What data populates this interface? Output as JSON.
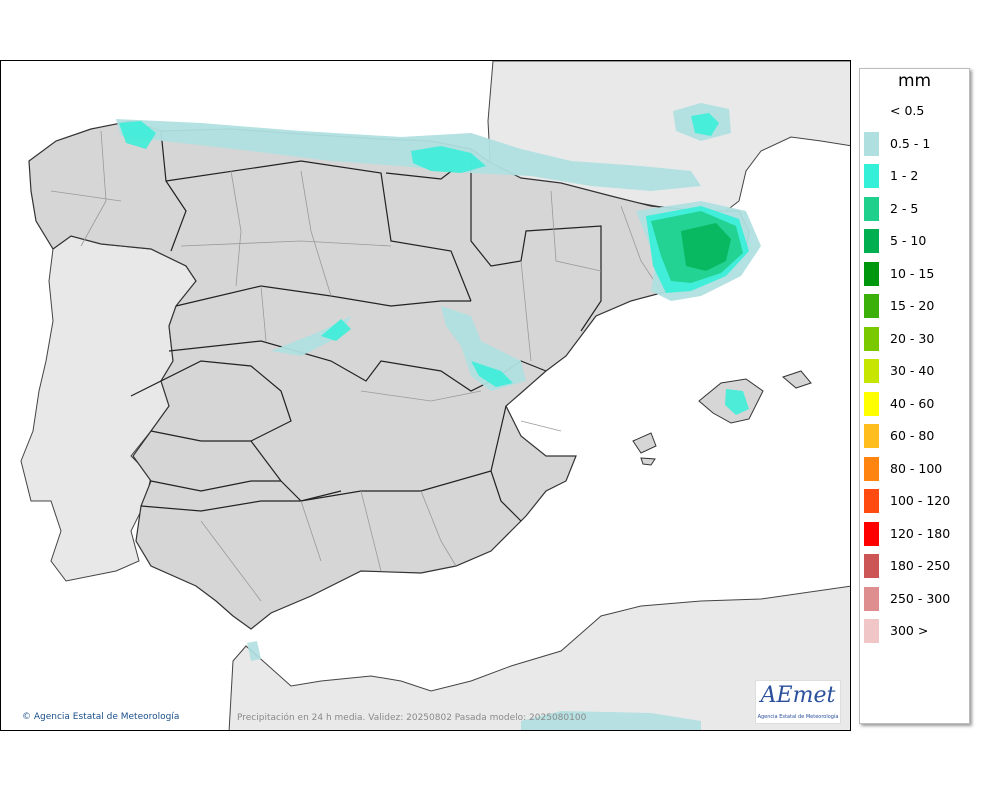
{
  "legend": {
    "unit": "mm",
    "items": [
      {
        "label": "< 0.5",
        "color": ""
      },
      {
        "label": "0.5 - 1",
        "color": "#b0dfe0"
      },
      {
        "label": "1 - 2",
        "color": "#34f0d8"
      },
      {
        "label": "2 - 5",
        "color": "#1fcf8c"
      },
      {
        "label": "5 - 10",
        "color": "#00b050"
      },
      {
        "label": "10 - 15",
        "color": "#00960e"
      },
      {
        "label": "15 - 20",
        "color": "#3cb00a"
      },
      {
        "label": "20 - 30",
        "color": "#7ac800"
      },
      {
        "label": "30 - 40",
        "color": "#c6e600"
      },
      {
        "label": "40 - 60",
        "color": "#ffff00"
      },
      {
        "label": "60 - 80",
        "color": "#ffbe1e"
      },
      {
        "label": "80 - 100",
        "color": "#ff8410"
      },
      {
        "label": "100 - 120",
        "color": "#ff4a10"
      },
      {
        "label": "120 - 180",
        "color": "#ff0000"
      },
      {
        "label": "180 - 250",
        "color": "#cc5555"
      },
      {
        "label": "250 - 300",
        "color": "#de8e8e"
      },
      {
        "label": "300 >",
        "color": "#f0c6c6"
      }
    ]
  },
  "credit": {
    "symbol": "©",
    "text": "Agencia Estatal de Meteorología"
  },
  "footer": {
    "caption": "Precipitación en 24 h media. Validez: 20250802 Pasada modelo: 2025080100"
  },
  "logo": {
    "brand": "AEmet",
    "subtitle": "Agencia Estatal de Meteorología"
  },
  "colors": {
    "land": "#d6d6d6",
    "foreign_land": "#e9e9e9",
    "sea": "#ffffff",
    "region_border": "#222222",
    "province_border": "#9a9a9a"
  }
}
